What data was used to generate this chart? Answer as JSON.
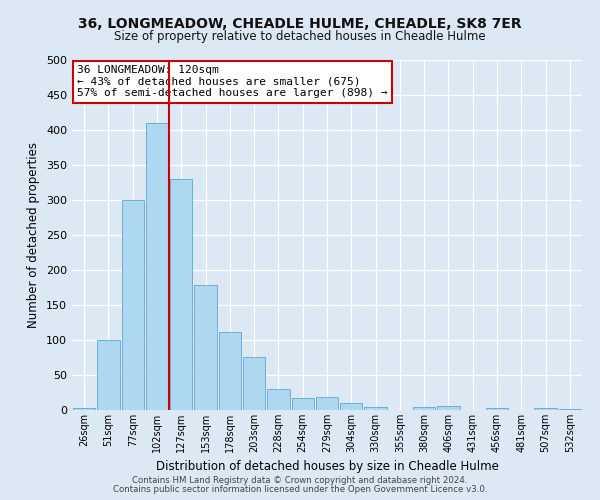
{
  "title": "36, LONGMEADOW, CHEADLE HULME, CHEADLE, SK8 7ER",
  "subtitle": "Size of property relative to detached houses in Cheadle Hulme",
  "xlabel": "Distribution of detached houses by size in Cheadle Hulme",
  "ylabel": "Number of detached properties",
  "bin_labels": [
    "26sqm",
    "51sqm",
    "77sqm",
    "102sqm",
    "127sqm",
    "153sqm",
    "178sqm",
    "203sqm",
    "228sqm",
    "254sqm",
    "279sqm",
    "304sqm",
    "330sqm",
    "355sqm",
    "380sqm",
    "406sqm",
    "431sqm",
    "456sqm",
    "481sqm",
    "507sqm",
    "532sqm"
  ],
  "bar_values": [
    3,
    100,
    300,
    410,
    330,
    178,
    112,
    76,
    30,
    17,
    18,
    10,
    4,
    0,
    4,
    6,
    0,
    3,
    0,
    3,
    2
  ],
  "bar_color": "#add8f0",
  "bar_edge_color": "#6baed6",
  "bar_edge_width": 0.7,
  "vline_index": 3.5,
  "vline_color": "#cc0000",
  "ylim": [
    0,
    500
  ],
  "yticks": [
    0,
    50,
    100,
    150,
    200,
    250,
    300,
    350,
    400,
    450,
    500
  ],
  "annotation_title": "36 LONGMEADOW: 120sqm",
  "annotation_line1": "← 43% of detached houses are smaller (675)",
  "annotation_line2": "57% of semi-detached houses are larger (898) →",
  "annotation_box_color": "#ffffff",
  "annotation_box_edge": "#cc0000",
  "background_color": "#dde8f5",
  "grid_color": "#ffffff",
  "footer_line1": "Contains HM Land Registry data © Crown copyright and database right 2024.",
  "footer_line2": "Contains public sector information licensed under the Open Government Licence v3.0."
}
